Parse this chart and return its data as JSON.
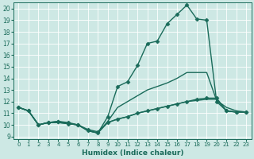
{
  "xlabel": "Humidex (Indice chaleur)",
  "xlim": [
    -0.5,
    23.5
  ],
  "ylim": [
    8.8,
    20.5
  ],
  "yticks": [
    9,
    10,
    11,
    12,
    13,
    14,
    15,
    16,
    17,
    18,
    19,
    20
  ],
  "xticks": [
    0,
    1,
    2,
    3,
    4,
    5,
    6,
    7,
    8,
    9,
    10,
    11,
    12,
    13,
    14,
    15,
    16,
    17,
    18,
    19,
    20,
    21,
    22,
    23
  ],
  "bg_color": "#cde8e4",
  "grid_color": "#b0d8d2",
  "line_color": "#1a6b5a",
  "series": [
    {
      "x": [
        0,
        1,
        2,
        3,
        4,
        5,
        6,
        7,
        8,
        9,
        10,
        11,
        12,
        13,
        14,
        15,
        16,
        17,
        18,
        19,
        20,
        21,
        22,
        23
      ],
      "y": [
        11.5,
        11.2,
        10.0,
        10.2,
        10.3,
        10.1,
        10.0,
        9.5,
        9.3,
        10.7,
        13.3,
        13.7,
        15.1,
        17.0,
        17.2,
        18.7,
        19.5,
        20.3,
        19.1,
        19.0,
        12.0,
        11.2,
        11.1,
        11.1
      ],
      "marker": "D",
      "markersize": 2.5,
      "linewidth": 1.0
    },
    {
      "x": [
        0,
        1,
        2,
        3,
        4,
        5,
        6,
        7,
        8,
        9,
        10,
        11,
        12,
        13,
        14,
        15,
        16,
        17,
        18,
        19,
        20,
        21,
        22,
        23
      ],
      "y": [
        11.5,
        11.2,
        10.0,
        10.2,
        10.3,
        10.2,
        10.0,
        9.6,
        9.4,
        10.2,
        10.5,
        10.7,
        11.0,
        11.2,
        11.4,
        11.6,
        11.8,
        12.0,
        12.2,
        12.3,
        12.3,
        11.2,
        11.1,
        11.1
      ],
      "marker": "D",
      "markersize": 2.5,
      "linewidth": 1.0
    },
    {
      "x": [
        0,
        1,
        2,
        3,
        4,
        5,
        6,
        7,
        8,
        9,
        10,
        11,
        12,
        13,
        14,
        15,
        16,
        17,
        18,
        19,
        20,
        21,
        22,
        23
      ],
      "y": [
        11.5,
        11.2,
        10.0,
        10.2,
        10.2,
        10.1,
        10.0,
        9.5,
        9.3,
        10.3,
        11.5,
        12.0,
        12.5,
        13.0,
        13.3,
        13.6,
        14.0,
        14.5,
        14.5,
        14.5,
        12.1,
        11.5,
        11.2,
        11.1
      ],
      "marker": null,
      "markersize": 0,
      "linewidth": 1.0
    },
    {
      "x": [
        0,
        1,
        2,
        3,
        4,
        5,
        6,
        7,
        8,
        9,
        10,
        11,
        12,
        13,
        14,
        15,
        16,
        17,
        18,
        19,
        20,
        21,
        22,
        23
      ],
      "y": [
        11.5,
        11.2,
        10.0,
        10.2,
        10.2,
        10.1,
        10.0,
        9.5,
        9.3,
        10.2,
        10.5,
        10.7,
        11.0,
        11.2,
        11.4,
        11.6,
        11.8,
        12.0,
        12.1,
        12.2,
        12.2,
        11.2,
        11.1,
        11.1
      ],
      "marker": null,
      "markersize": 0,
      "linewidth": 1.0
    }
  ]
}
